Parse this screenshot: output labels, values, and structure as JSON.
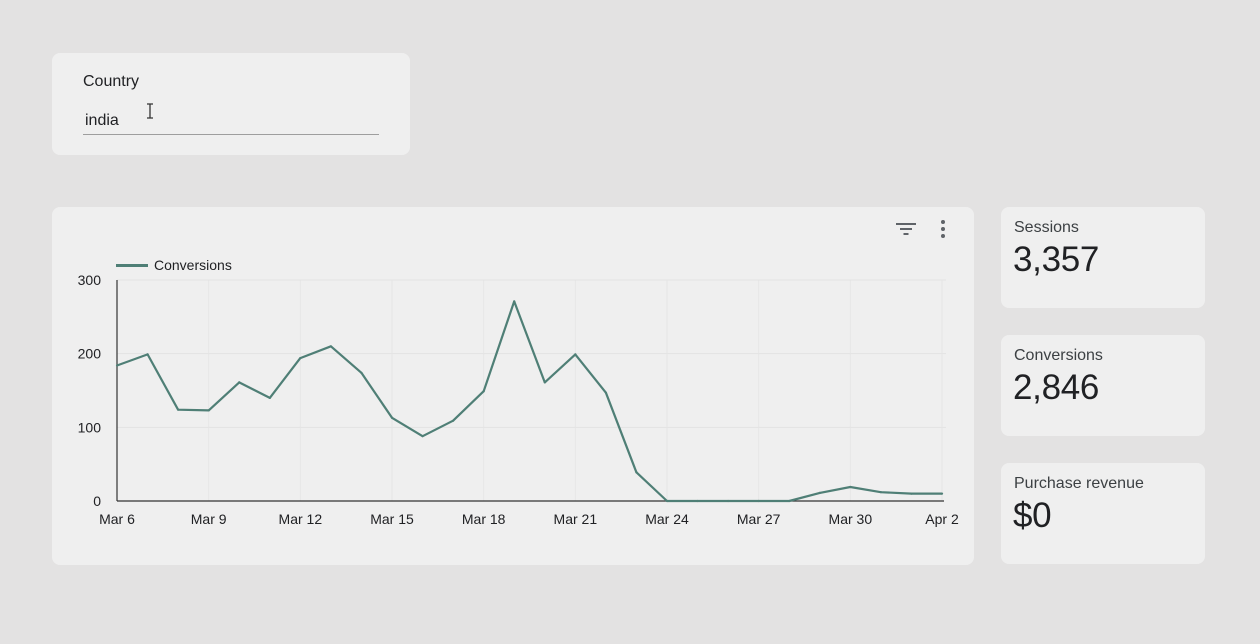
{
  "filter": {
    "label": "Country",
    "value": "india"
  },
  "chart_data": {
    "type": "line",
    "title": "",
    "xlabel": "",
    "ylabel": "",
    "legend_position": "top-left",
    "ylim": [
      0,
      300
    ],
    "y_ticks": [
      0,
      100,
      200,
      300
    ],
    "grid": true,
    "x": [
      "Mar 6",
      "Mar 7",
      "Mar 8",
      "Mar 9",
      "Mar 10",
      "Mar 11",
      "Mar 12",
      "Mar 13",
      "Mar 14",
      "Mar 15",
      "Mar 16",
      "Mar 17",
      "Mar 18",
      "Mar 19",
      "Mar 20",
      "Mar 21",
      "Mar 22",
      "Mar 23",
      "Mar 24",
      "Mar 25",
      "Mar 26",
      "Mar 27",
      "Mar 28",
      "Mar 29",
      "Mar 30",
      "Mar 31",
      "Apr 1",
      "Apr 2"
    ],
    "x_tick_labels": [
      "Mar 6",
      "Mar 9",
      "Mar 12",
      "Mar 15",
      "Mar 18",
      "Mar 21",
      "Mar 24",
      "Mar 27",
      "Mar 30",
      "Apr 2"
    ],
    "series": [
      {
        "name": "Conversions",
        "color": "#4f7f76",
        "values": [
          184,
          199,
          124,
          123,
          161,
          140,
          194,
          210,
          174,
          113,
          88,
          109,
          149,
          271,
          161,
          199,
          147,
          39,
          0,
          0,
          0,
          0,
          0,
          11,
          19,
          12,
          10,
          10
        ]
      }
    ]
  },
  "scorecards": [
    {
      "label": "Sessions",
      "value": "3,357"
    },
    {
      "label": "Conversions",
      "value": "2,846"
    },
    {
      "label": "Purchase revenue",
      "value": "$0"
    }
  ],
  "icons": {
    "chart_filter": "filter-icon",
    "chart_menu": "more-vert-icon",
    "text_cursor": "text-cursor-icon"
  }
}
